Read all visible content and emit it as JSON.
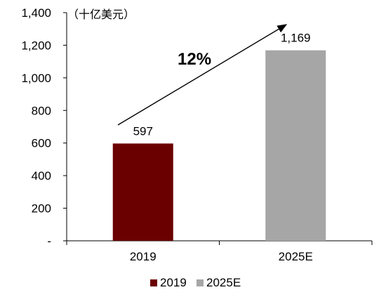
{
  "chart_data": {
    "type": "bar",
    "unit_label": "（十亿美元）",
    "categories": [
      "2019",
      "2025E"
    ],
    "values": [
      597,
      1169
    ],
    "data_labels": [
      "597",
      "1,169"
    ],
    "colors": [
      "#6b0000",
      "#a6a6a6"
    ],
    "ylim": [
      0,
      1400
    ],
    "y_ticks": [
      0,
      200,
      400,
      600,
      800,
      1000,
      1200,
      1400
    ],
    "y_tick_labels": [
      "-",
      "200",
      "400",
      "600",
      "800",
      "1,000",
      "1,200",
      "1,400"
    ],
    "annotation": "12%",
    "legend": {
      "position": "bottom",
      "entries": [
        "2019",
        "2025E"
      ]
    },
    "grid": false
  }
}
